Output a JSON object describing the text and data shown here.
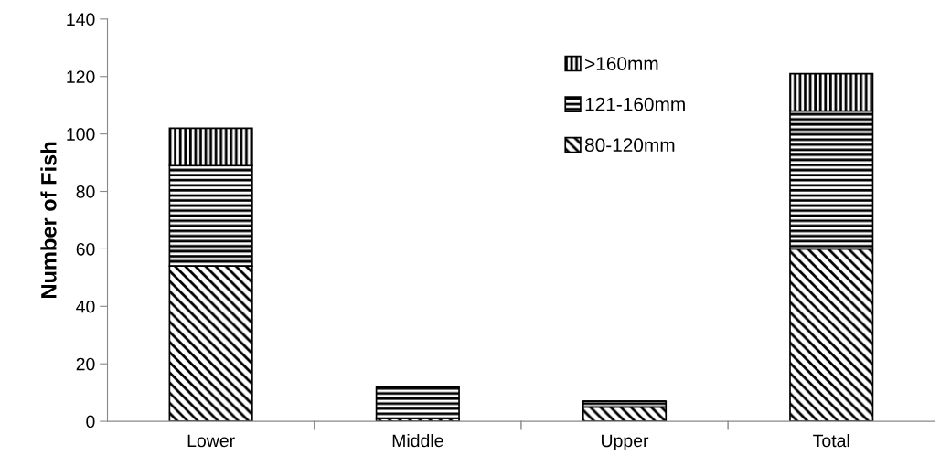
{
  "chart_data": {
    "type": "bar",
    "stacked": true,
    "ylabel": "Number of Fish",
    "categories": [
      "Lower",
      "Middle",
      "Upper",
      "Total"
    ],
    "series": [
      {
        "name": "80-120mm",
        "color": "#000000",
        "values": [
          54,
          1,
          5,
          60
        ]
      },
      {
        "name": "121-160mm",
        "color": "#000000",
        "values": [
          35,
          11,
          2,
          48
        ]
      },
      {
        "name": ">160mm",
        "color": "#000000",
        "values": [
          13,
          0,
          0,
          13
        ]
      }
    ],
    "ylim": [
      0,
      140
    ],
    "yticks": [
      0,
      20,
      40,
      60,
      80,
      100,
      120,
      140
    ],
    "grid": false,
    "legend": "top right"
  }
}
